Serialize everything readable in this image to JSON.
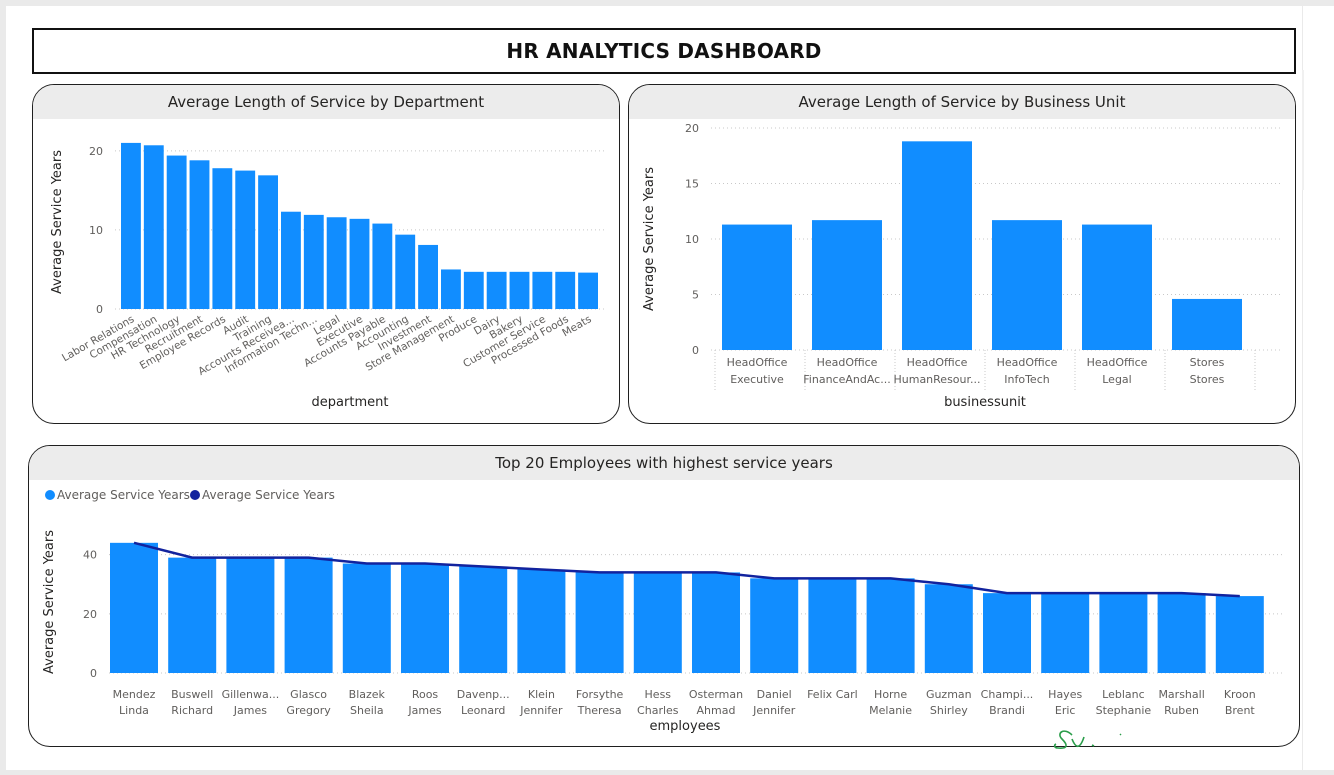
{
  "dashboard": {
    "title": "HR ANALYTICS DASHBOARD"
  },
  "colors": {
    "bar": "#118DFF",
    "line": "#12239E",
    "grid": "#c8c8c8",
    "header_bg": "#ececec",
    "signature": "#2a9d4a"
  },
  "chart_data": [
    {
      "id": "dept",
      "type": "bar",
      "title": "Average Length of Service by Department",
      "xlabel": "department",
      "ylabel": "Average Service Years",
      "ylim": [
        0,
        22
      ],
      "yticks": [
        0,
        10,
        20
      ],
      "grid": true,
      "categories": [
        "Labor Relations",
        "Compensation",
        "HR Technology",
        "Recruitment",
        "Employee Records",
        "Audit",
        "Training",
        "Accounts Receivea...",
        "Information Techn...",
        "Legal",
        "Executive",
        "Accounts Payable",
        "Accounting",
        "Investment",
        "Store Management",
        "Produce",
        "Dairy",
        "Bakery",
        "Customer Service",
        "Processed Foods",
        "Meats"
      ],
      "values": [
        21.0,
        20.7,
        19.4,
        18.8,
        17.8,
        17.5,
        16.9,
        12.3,
        11.9,
        11.6,
        11.4,
        10.8,
        9.4,
        8.1,
        5.0,
        4.7,
        4.7,
        4.7,
        4.7,
        4.7,
        4.6
      ]
    },
    {
      "id": "bu",
      "type": "bar",
      "title": "Average Length of Service by Business Unit",
      "xlabel": "businessunit",
      "ylabel": "Average Service Years",
      "ylim": [
        0,
        20
      ],
      "yticks": [
        0,
        5,
        10,
        15,
        20
      ],
      "grid": true,
      "categories": [
        [
          "HeadOffice",
          "Executive"
        ],
        [
          "HeadOffice",
          "FinanceAndAc..."
        ],
        [
          "HeadOffice",
          "HumanResour..."
        ],
        [
          "HeadOffice",
          "InfoTech"
        ],
        [
          "HeadOffice",
          "Legal"
        ],
        [
          "Stores",
          "Stores"
        ]
      ],
      "values": [
        11.3,
        11.7,
        18.8,
        11.7,
        11.3,
        4.6
      ]
    },
    {
      "id": "emp",
      "type": "bar",
      "title": "Top 20 Employees with highest service years",
      "xlabel": "employees",
      "ylabel": "Average Service Years",
      "ylim": [
        0,
        48
      ],
      "yticks": [
        0,
        20,
        40
      ],
      "grid": true,
      "legend_position": "top-left",
      "legend": [
        "Average Service Years",
        "Average Service Years"
      ],
      "categories": [
        [
          "Mendez",
          "Linda"
        ],
        [
          "Buswell",
          "Richard"
        ],
        [
          "Gillenwa...",
          "James"
        ],
        [
          "Glasco",
          "Gregory"
        ],
        [
          "Blazek",
          "Sheila"
        ],
        [
          "Roos",
          "James"
        ],
        [
          "Davenp...",
          "Leonard"
        ],
        [
          "Klein",
          "Jennifer"
        ],
        [
          "Forsythe",
          "Theresa"
        ],
        [
          "Hess",
          "Charles"
        ],
        [
          "Osterman",
          "Ahmad"
        ],
        [
          "Daniel",
          "Jennifer"
        ],
        [
          "Felix Carl"
        ],
        [
          "Horne",
          "Melanie"
        ],
        [
          "Guzman",
          "Shirley"
        ],
        [
          "Champi...",
          "Brandi"
        ],
        [
          "Hayes",
          "Eric"
        ],
        [
          "Leblanc",
          "Stephanie"
        ],
        [
          "Marshall",
          "Ruben"
        ],
        [
          "Kroon",
          "Brent"
        ]
      ],
      "series": [
        {
          "type": "bar",
          "values": [
            44,
            39,
            39,
            39,
            37,
            37,
            36,
            35,
            34,
            34,
            34,
            32,
            32,
            32,
            30,
            27,
            27,
            27,
            27,
            26
          ]
        },
        {
          "type": "line",
          "values": [
            44,
            39,
            39,
            39,
            37,
            37,
            36,
            35,
            34,
            34,
            34,
            32,
            32,
            32,
            30,
            27,
            27,
            27,
            27,
            26
          ]
        }
      ]
    }
  ]
}
